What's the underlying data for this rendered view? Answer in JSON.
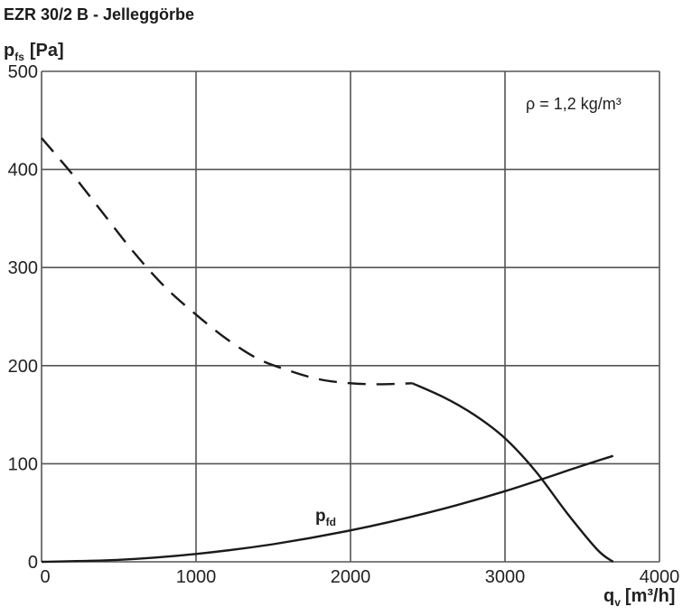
{
  "title": "EZR 30/2 B - Jelleggörbe",
  "chart_data": {
    "type": "line",
    "title": "EZR 30/2 B - Jelleggörbe",
    "ylabel": {
      "main": "p",
      "sub": "fs",
      "unit": "[Pa]"
    },
    "xlabel": {
      "main": "q",
      "sub": "v",
      "unit": "[m³/h]"
    },
    "xlim": [
      0,
      4000
    ],
    "ylim": [
      0,
      500
    ],
    "x_ticks": [
      0,
      1000,
      2000,
      3000,
      4000
    ],
    "y_ticks": [
      0,
      100,
      200,
      300,
      400,
      500
    ],
    "x_tick_labels": [
      "0",
      "1000",
      "2000",
      "3000",
      "4000"
    ],
    "y_tick_labels": [
      "0",
      "100",
      "200",
      "300",
      "400",
      "500"
    ],
    "grid": true,
    "annotation": "ρ = 1,2 kg/m³",
    "curve_label": {
      "main": "p",
      "sub": "fd"
    },
    "series": [
      {
        "style": "dashed",
        "points": [
          [
            0,
            432
          ],
          [
            200,
            395
          ],
          [
            400,
            355
          ],
          [
            600,
            315
          ],
          [
            800,
            280
          ],
          [
            1000,
            252
          ],
          [
            1200,
            227
          ],
          [
            1400,
            207
          ],
          [
            1600,
            195
          ],
          [
            1800,
            186
          ],
          [
            2000,
            182
          ],
          [
            2200,
            181
          ],
          [
            2400,
            182
          ]
        ]
      },
      {
        "style": "solid",
        "points": [
          [
            2400,
            182
          ],
          [
            2600,
            168
          ],
          [
            2800,
            150
          ],
          [
            3000,
            126
          ],
          [
            3200,
            92
          ],
          [
            3400,
            50
          ],
          [
            3600,
            12
          ],
          [
            3700,
            0
          ]
        ]
      },
      {
        "style": "solid",
        "label": "pfd",
        "points": [
          [
            0,
            0
          ],
          [
            500,
            2
          ],
          [
            1000,
            8
          ],
          [
            1500,
            18
          ],
          [
            2000,
            32
          ],
          [
            2500,
            50
          ],
          [
            3000,
            72
          ],
          [
            3500,
            98
          ],
          [
            3700,
            108
          ]
        ]
      }
    ]
  }
}
